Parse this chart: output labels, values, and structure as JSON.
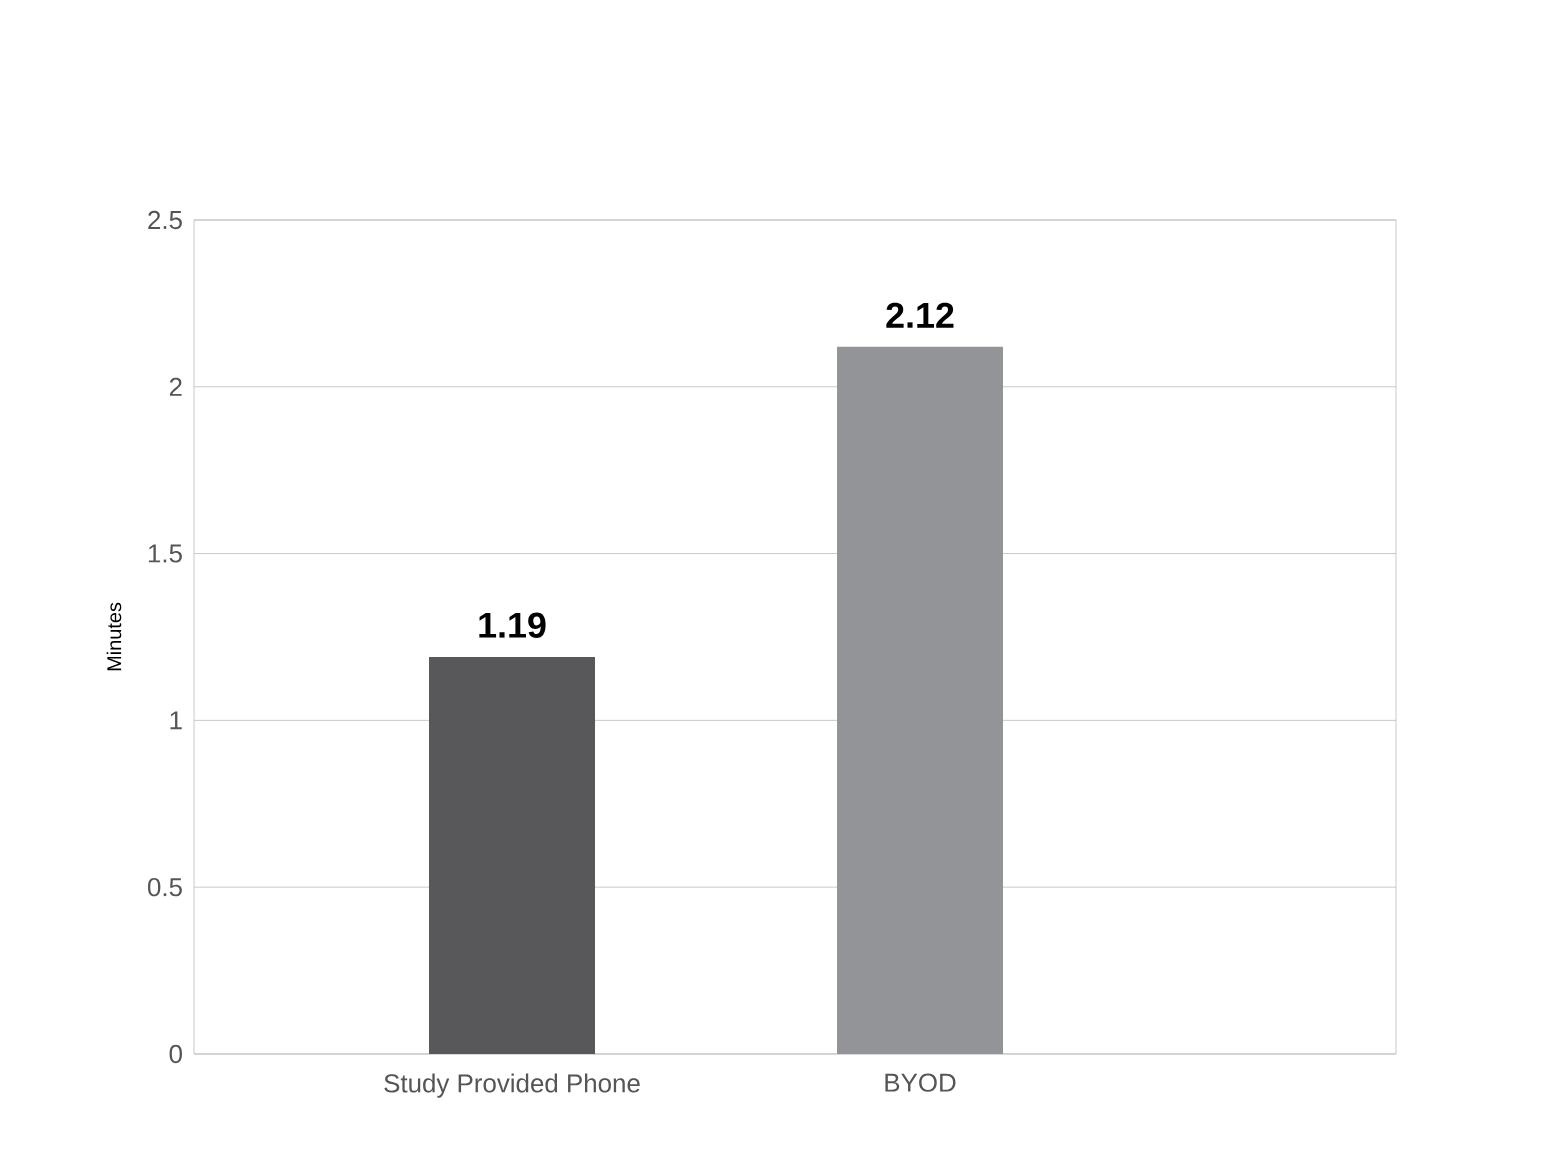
{
  "chart_data": {
    "type": "bar",
    "categories": [
      "Study Provided Phone",
      "BYOD"
    ],
    "values": [
      1.19,
      2.12
    ],
    "colors": [
      "#58585a",
      "#939497"
    ],
    "ylabel": "Minutes",
    "ylim": [
      0,
      2.5
    ],
    "yticks": [
      0,
      0.5,
      1,
      1.5,
      2,
      2.5
    ],
    "grid": "y",
    "data_labels": true
  }
}
